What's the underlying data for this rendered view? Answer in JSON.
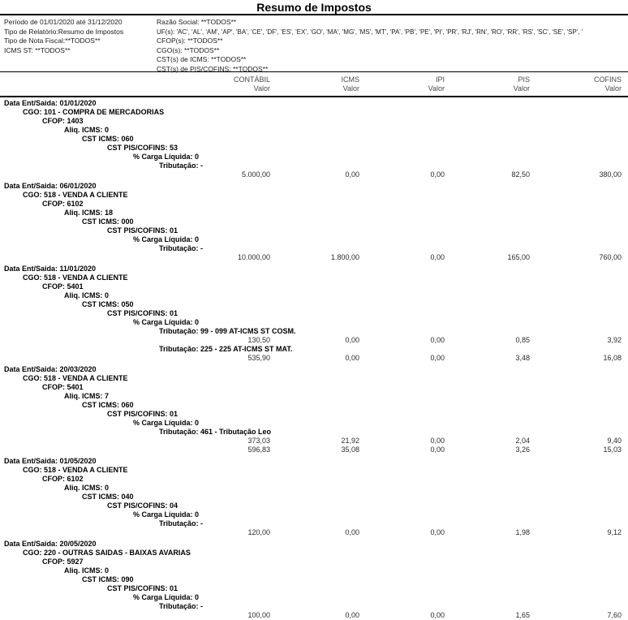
{
  "title": "Resumo de Impostos",
  "filters": {
    "left": [
      "Período de 01/01/2020 até 31/12/2020",
      "Tipo de Relatório:Resumo de Impostos",
      "Tipo de Nota Fiscal:**TODOS**",
      "ICMS ST: **TODOS**"
    ],
    "right": [
      "Razão Social: **TODOS**",
      "UF(s): 'AC', 'AL', 'AM', 'AP', 'BA', 'CE', 'DF', 'ES', 'EX', 'GO', 'MA', 'MG', 'MS', 'MT', 'PA', 'PB', 'PE', 'PI', 'PR', 'RJ', 'RN', 'RO', 'RR', 'RS', 'SC', 'SE', 'SP', '",
      "CFOP(s): **TODOS**",
      "CGO(s): **TODOS**",
      "CST(s) de ICMS: **TODOS**",
      "CST(s) de PIS/COFINS: **TODOS**"
    ]
  },
  "table_header": {
    "columns": [
      {
        "name": "CONTÁBIL",
        "sub": "Valor"
      },
      {
        "name": "ICMS",
        "sub": "Valor"
      },
      {
        "name": "IPI",
        "sub": "Valor"
      },
      {
        "name": "PIS",
        "sub": "Valor"
      },
      {
        "name": "COFINS",
        "sub": "Valor"
      }
    ]
  },
  "report": {
    "groups": [
      {
        "date_line": "Data Ent/Saida: 01/01/2020",
        "cgo_line": "CGO: 101 - COMPRA DE MERCADORIAS",
        "cfop_line": "CFOP: 1403",
        "aliq_icms_line": "Aliq. ICMS: 0",
        "cst_icms_line": "CST ICMS: 060",
        "cst_pis_cofins_line": "CST PIS/COFINS: 53",
        "carga_liquida_line": "% Carga Líquida: 0",
        "tributacoes": [
          {
            "label": "Tributação:  -",
            "value_rows": [
              [
                "5.000,00",
                "0,00",
                "0,00",
                "82,50",
                "380,00"
              ]
            ]
          }
        ]
      },
      {
        "date_line": "Data Ent/Saida: 06/01/2020",
        "cgo_line": "CGO: 518 - VENDA A CLIENTE",
        "cfop_line": "CFOP: 6102",
        "aliq_icms_line": "Aliq. ICMS: 18",
        "cst_icms_line": "CST ICMS: 000",
        "cst_pis_cofins_line": "CST PIS/COFINS: 01",
        "carga_liquida_line": "% Carga Líquida: 0",
        "tributacoes": [
          {
            "label": "Tributação:  -",
            "value_rows": [
              [
                "10.000,00",
                "1.800,00",
                "0,00",
                "165,00",
                "760,00"
              ]
            ]
          }
        ]
      },
      {
        "date_line": "Data Ent/Saida: 11/01/2020",
        "cgo_line": "CGO: 518 - VENDA A CLIENTE",
        "cfop_line": "CFOP: 5401",
        "aliq_icms_line": "Aliq. ICMS: 0",
        "cst_icms_line": "CST ICMS: 050",
        "cst_pis_cofins_line": "CST PIS/COFINS: 01",
        "carga_liquida_line": "% Carga Líquida: 0",
        "tributacoes": [
          {
            "label": "Tributação: 99 - 099 AT-ICMS ST COSM.",
            "value_rows": [
              [
                "130,50",
                "0,00",
                "0,00",
                "0,85",
                "3,92"
              ]
            ]
          },
          {
            "label": "Tributação: 225 - 225 AT-ICMS ST MAT.",
            "value_rows": [
              [
                "535,90",
                "0,00",
                "0,00",
                "3,48",
                "16,08"
              ]
            ]
          }
        ]
      },
      {
        "date_line": "Data Ent/Saida: 20/03/2020",
        "cgo_line": "CGO: 518 - VENDA A CLIENTE",
        "cfop_line": "CFOP: 5401",
        "aliq_icms_line": "Aliq. ICMS: 7",
        "cst_icms_line": "CST ICMS: 060",
        "cst_pis_cofins_line": "CST PIS/COFINS: 01",
        "carga_liquida_line": "% Carga Líquida: 0",
        "tributacoes": [
          {
            "label": "Tributação: 461 - Tributação Leo",
            "value_rows": [
              [
                "373,03",
                "21,92",
                "0,00",
                "2,04",
                "9,40"
              ],
              [
                "596,83",
                "35,08",
                "0,00",
                "3,26",
                "15,03"
              ]
            ]
          }
        ]
      },
      {
        "date_line": "Data Ent/Saida: 01/05/2020",
        "cgo_line": "CGO: 518 - VENDA A CLIENTE",
        "cfop_line": "CFOP: 6102",
        "aliq_icms_line": "Aliq. ICMS: 0",
        "cst_icms_line": "CST ICMS: 040",
        "cst_pis_cofins_line": "CST PIS/COFINS: 04",
        "carga_liquida_line": "% Carga Líquida: 0",
        "tributacoes": [
          {
            "label": "Tributação:  -",
            "value_rows": [
              [
                "120,00",
                "0,00",
                "0,00",
                "1,98",
                "9,12"
              ]
            ]
          }
        ]
      },
      {
        "date_line": "Data Ent/Saida: 20/05/2020",
        "cgo_line": "CGO: 220 - OUTRAS SAIDAS - BAIXAS AVARIAS",
        "cfop_line": "CFOP: 5927",
        "aliq_icms_line": "Aliq. ICMS: 0",
        "cst_icms_line": "CST ICMS: 090",
        "cst_pis_cofins_line": "CST PIS/COFINS: 01",
        "carga_liquida_line": "% Carga Líquida: 0",
        "tributacoes": [
          {
            "label": "Tributação:  -",
            "value_rows": [
              [
                "100,00",
                "0,00",
                "0,00",
                "1,65",
                "7,60"
              ]
            ]
          }
        ]
      }
    ]
  }
}
